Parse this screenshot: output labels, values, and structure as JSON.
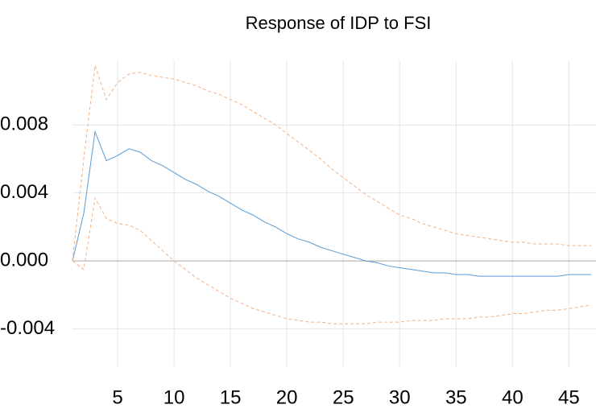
{
  "chart_data": {
    "type": "line",
    "title": "Response of IDP to FSI",
    "x": [
      1,
      2,
      3,
      4,
      5,
      6,
      7,
      8,
      9,
      10,
      11,
      12,
      13,
      14,
      15,
      16,
      17,
      18,
      19,
      20,
      21,
      22,
      23,
      24,
      25,
      26,
      27,
      28,
      29,
      30,
      31,
      32,
      33,
      34,
      35,
      36,
      37,
      38,
      39,
      40,
      41,
      42,
      43,
      44,
      45,
      46,
      47
    ],
    "series": [
      {
        "color": "#5b9bd5",
        "values": [
          0,
          0.0028,
          0.0076,
          0.0059,
          0.0062,
          0.0066,
          0.0064,
          0.0059,
          0.0056,
          0.0052,
          0.0048,
          0.0045,
          0.0041,
          0.0038,
          0.0034,
          0.003,
          0.0027,
          0.0023,
          0.002,
          0.0016,
          0.0013,
          0.0011,
          0.0008,
          0.0006,
          0.0004,
          0.0002,
          0,
          -0.0001,
          -0.0003,
          -0.0004,
          -0.0005,
          -0.0006,
          -0.0007,
          -0.0007,
          -0.0008,
          -0.0008,
          -0.0009,
          -0.0009,
          -0.0009,
          -0.0009,
          -0.0009,
          -0.0009,
          -0.0009,
          -0.0009,
          -0.0008,
          -0.0008,
          -0.0008
        ]
      },
      {
        "color": "#f4b183",
        "dashed": true,
        "values": [
          0,
          0.006,
          0.0115,
          0.0095,
          0.0105,
          0.011,
          0.0111,
          0.0109,
          0.0108,
          0.0107,
          0.0105,
          0.0103,
          0.01,
          0.0098,
          0.0095,
          0.0092,
          0.0088,
          0.0084,
          0.008,
          0.0075,
          0.007,
          0.0065,
          0.006,
          0.0054,
          0.0049,
          0.0044,
          0.0039,
          0.0035,
          0.0031,
          0.0027,
          0.0025,
          0.0022,
          0.002,
          0.0018,
          0.0016,
          0.0015,
          0.0014,
          0.0013,
          0.0012,
          0.0011,
          0.0011,
          0.001,
          0.001,
          0.001,
          0.0009,
          0.0009,
          0.0009
        ]
      },
      {
        "color": "#f4b183",
        "dashed": true,
        "values": [
          0,
          -0.0005,
          0.0037,
          0.0025,
          0.0022,
          0.0021,
          0.0018,
          0.0012,
          0.0006,
          0,
          -0.0005,
          -0.001,
          -0.0014,
          -0.0018,
          -0.0022,
          -0.0025,
          -0.0028,
          -0.003,
          -0.0032,
          -0.0034,
          -0.0035,
          -0.0036,
          -0.0036,
          -0.0037,
          -0.0037,
          -0.0037,
          -0.0037,
          -0.0036,
          -0.0036,
          -0.0036,
          -0.0035,
          -0.0035,
          -0.0035,
          -0.0034,
          -0.0034,
          -0.0034,
          -0.0033,
          -0.0033,
          -0.0032,
          -0.0031,
          -0.0031,
          -0.003,
          -0.0029,
          -0.0029,
          -0.0028,
          -0.0027,
          -0.0026
        ]
      }
    ],
    "xlim": [
      1,
      47.4
    ],
    "xticks": [
      5,
      10,
      15,
      20,
      25,
      30,
      35,
      40,
      45
    ],
    "ylim": [
      -0.0062,
      0.0118
    ],
    "yticks": [
      0.008,
      0.004,
      {
        "value": 0,
        "label": "0.000"
      },
      -0.004
    ],
    "grid": true
  }
}
